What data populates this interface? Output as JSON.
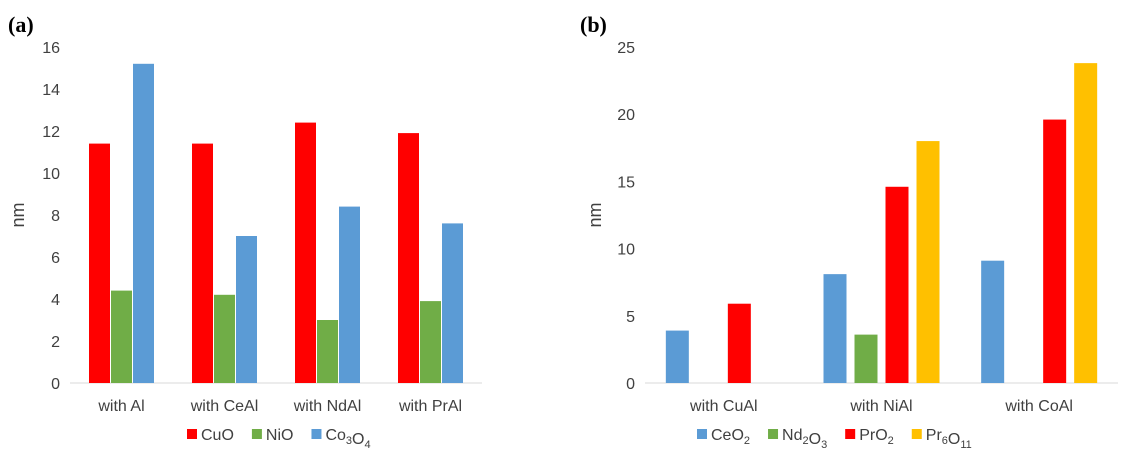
{
  "chart_data": [
    {
      "panel_label": "(a)",
      "type": "bar",
      "ylabel": "nm",
      "ylim": [
        0,
        16
      ],
      "yticks": [
        0,
        2,
        4,
        6,
        8,
        10,
        12,
        14,
        16
      ],
      "grid": false,
      "legend_position": "bottom",
      "categories": [
        "with Al",
        "with CeAl",
        "with NdAl",
        "with PrAl"
      ],
      "series": [
        {
          "name": "CuO",
          "name_parts": [
            {
              "t": "CuO"
            }
          ],
          "color": "#ff0000",
          "values": [
            11.4,
            11.4,
            12.4,
            11.9
          ]
        },
        {
          "name": "NiO",
          "name_parts": [
            {
              "t": "NiO"
            }
          ],
          "color": "#70ad47",
          "values": [
            4.4,
            4.2,
            3.0,
            3.9
          ]
        },
        {
          "name": "Co3O4",
          "name_parts": [
            {
              "t": "Co"
            },
            {
              "t": "3",
              "sub": true
            },
            {
              "t": "O"
            },
            {
              "t": "4",
              "sub": true
            }
          ],
          "color": "#5b9bd5",
          "values": [
            15.2,
            7.0,
            8.4,
            7.6
          ]
        }
      ]
    },
    {
      "panel_label": "(b)",
      "type": "bar",
      "ylabel": "nm",
      "ylim": [
        0,
        25
      ],
      "yticks": [
        0,
        5,
        10,
        15,
        20,
        25
      ],
      "grid": false,
      "legend_position": "bottom",
      "categories": [
        "with CuAl",
        "with NiAl",
        "with CoAl"
      ],
      "series": [
        {
          "name": "CeO2",
          "name_parts": [
            {
              "t": "CeO"
            },
            {
              "t": "2",
              "sub": true
            }
          ],
          "color": "#5b9bd5",
          "values": [
            3.9,
            8.1,
            9.1
          ]
        },
        {
          "name": "Nd2O3",
          "name_parts": [
            {
              "t": "Nd"
            },
            {
              "t": "2",
              "sub": true
            },
            {
              "t": "O"
            },
            {
              "t": "3",
              "sub": true
            }
          ],
          "color": "#70ad47",
          "values": [
            null,
            3.6,
            null
          ]
        },
        {
          "name": "PrO2",
          "name_parts": [
            {
              "t": "PrO"
            },
            {
              "t": "2",
              "sub": true
            }
          ],
          "color": "#ff0000",
          "values": [
            5.9,
            14.6,
            19.6
          ]
        },
        {
          "name": "Pr6O11",
          "name_parts": [
            {
              "t": "Pr"
            },
            {
              "t": "6",
              "sub": true
            },
            {
              "t": "O"
            },
            {
              "t": "11",
              "sub": true
            }
          ],
          "color": "#ffc000",
          "values": [
            null,
            18.0,
            23.8
          ]
        }
      ]
    }
  ]
}
